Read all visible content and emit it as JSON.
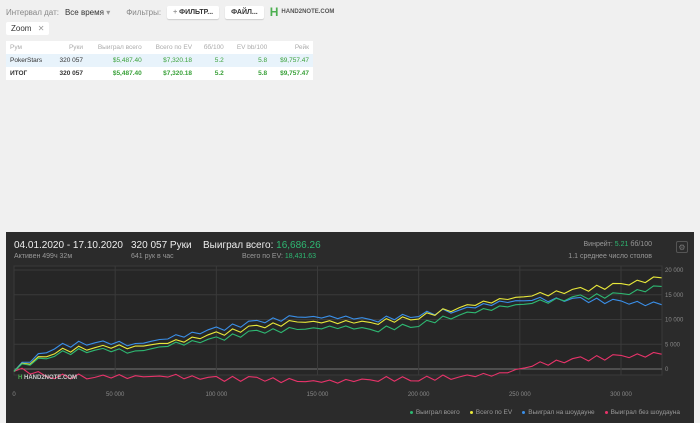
{
  "toolbar": {
    "interval_label": "Интервал дат:",
    "interval_value": "Все время",
    "filters_label": "Фильтры:",
    "filter_button": "ФИЛЬТР...",
    "file_button": "ФАЙЛ...",
    "logo": "HAND2NOTE.COM"
  },
  "chip": {
    "label": "Zoom"
  },
  "table": {
    "headers": [
      "Рум",
      "Руки",
      "Выиграл всего",
      "Всего по EV",
      "бб/100",
      "EV bb/100",
      "Рейк"
    ],
    "rows": [
      [
        "PokerStars",
        "320 057",
        "$5,487.40",
        "$7,320.18",
        "5.2",
        "5.8",
        "$9,757.47"
      ],
      [
        "ИТОГ",
        "320 057",
        "$5,487.40",
        "$7,320.18",
        "5.2",
        "5.8",
        "$9,757.47"
      ]
    ]
  },
  "panel": {
    "dates": "04.01.2020 - 17.10.2020",
    "active": "Активен 499ч 32м",
    "hands": "320 057 Руки",
    "hands_rate": "641 рук в час",
    "won_label": "Выиграл всего:",
    "won_value": "16,686.26",
    "ev_label": "Всего по EV:",
    "ev_value": "18,431.63",
    "winrate_label": "Винрейт:",
    "winrate_value": "5.21",
    "winrate_unit": "бб/100",
    "tables": "1.1 среднее число столов",
    "watermark": "HAND2NOTE.COM"
  },
  "chart_data": {
    "type": "line",
    "xlim": [
      0,
      320057
    ],
    "ylim": [
      -3000,
      21000
    ],
    "x_ticks": [
      "0",
      "50 000",
      "100 000",
      "150 000",
      "200 000",
      "250 000",
      "300 000"
    ],
    "y_ticks": [
      "20 000",
      "15 000",
      "10 000",
      "5 000",
      "0"
    ],
    "x": [
      0,
      20000,
      40000,
      60000,
      80000,
      100000,
      120000,
      140000,
      160000,
      180000,
      200000,
      220000,
      240000,
      260000,
      280000,
      300000,
      320057
    ],
    "series": [
      {
        "name": "Выиграл всего",
        "color": "#2eb872",
        "values": [
          0,
          3000,
          4000,
          3500,
          5000,
          6000,
          7500,
          8000,
          8500,
          8000,
          9000,
          11000,
          12500,
          13500,
          14500,
          15000,
          16686
        ]
      },
      {
        "name": "Всего по EV",
        "color": "#e8e83a",
        "values": [
          0,
          3500,
          4500,
          4500,
          5500,
          7000,
          8500,
          9500,
          9500,
          9500,
          10500,
          12500,
          14000,
          15000,
          16000,
          17000,
          18431
        ]
      },
      {
        "name": "Выиграл на шоудауне",
        "color": "#3a8fe8",
        "values": [
          0,
          4500,
          5500,
          5000,
          6500,
          8000,
          9500,
          10500,
          10500,
          10000,
          11000,
          12000,
          13500,
          14000,
          14000,
          13500,
          13000
        ]
      },
      {
        "name": "Выиграл без шоудауна",
        "color": "#e8336a",
        "values": [
          0,
          -1500,
          -1500,
          -1500,
          -1500,
          -2000,
          -2000,
          -2500,
          -2500,
          -2000,
          -2000,
          -1500,
          -1000,
          1000,
          2000,
          2500,
          3000
        ]
      }
    ]
  }
}
